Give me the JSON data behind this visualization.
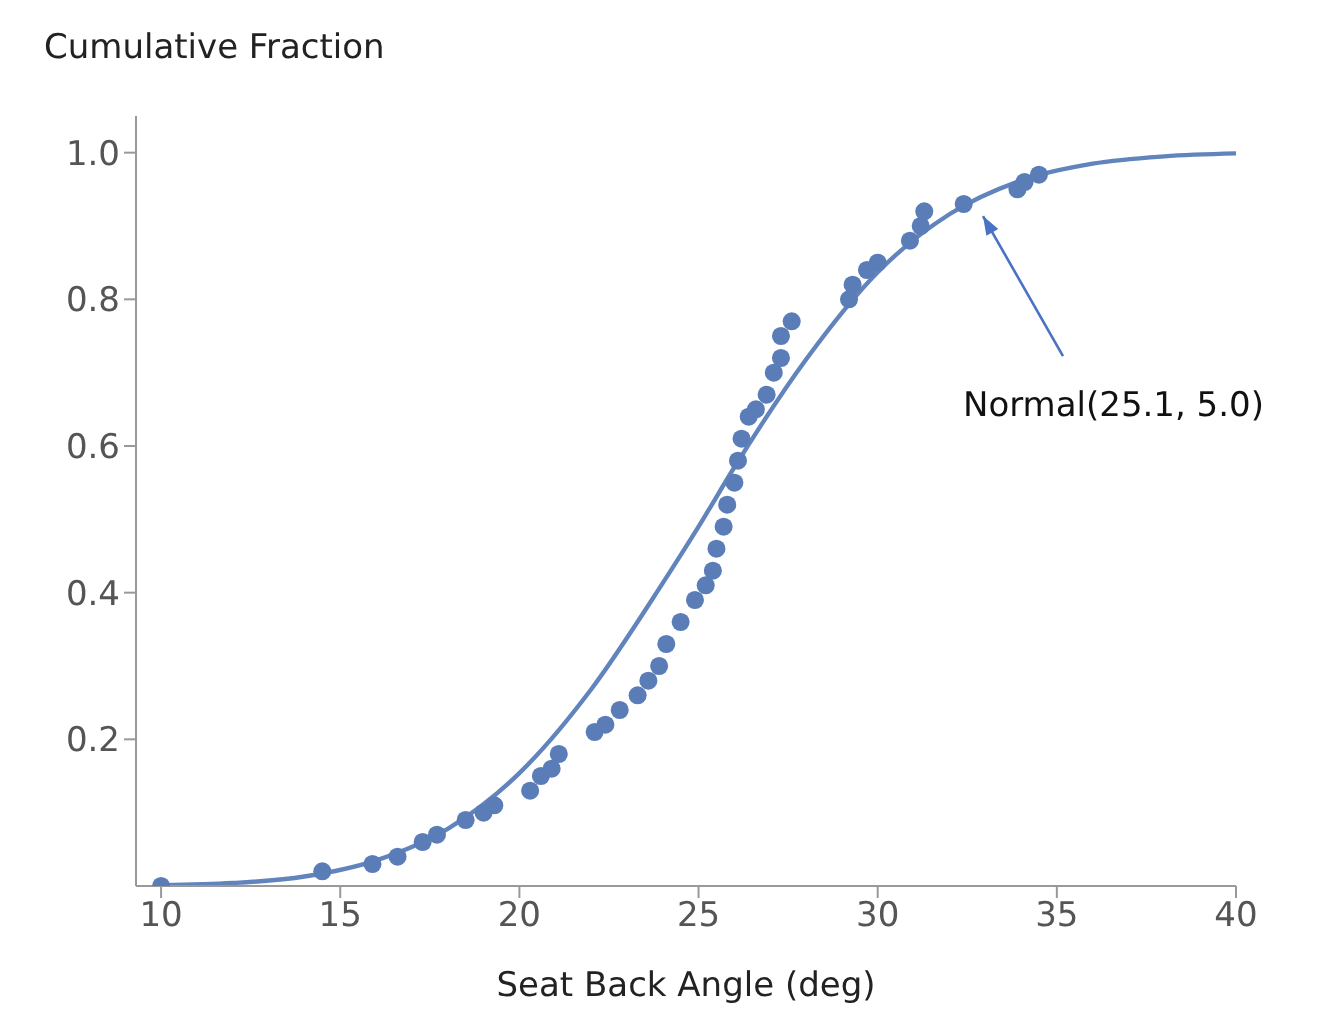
{
  "chart_data": {
    "type": "scatter",
    "xlabel": "Seat Back Angle (deg)",
    "ylabel": "Cumulative Fraction",
    "xlim": [
      9.3,
      40
    ],
    "xticks": [
      10,
      15,
      20,
      25,
      30,
      35,
      40
    ],
    "ylim": [
      0,
      1.05
    ],
    "yticks": [
      0.2,
      0.4,
      0.6,
      0.8,
      {
        "value": 1.0,
        "label": "1.0"
      }
    ],
    "grid": false,
    "marker": "circle",
    "annotations": [
      "Normal(25.1, 5.0)"
    ],
    "series": [
      {
        "color": "#5a7db8",
        "x": [
          10.0,
          14.5,
          15.9,
          16.6,
          17.3,
          17.7,
          18.5,
          19.0,
          19.3,
          20.3,
          20.6,
          20.9,
          21.1,
          22.1,
          22.4,
          22.8,
          23.3,
          23.6,
          23.9,
          24.1,
          24.5,
          24.9,
          25.2,
          25.4,
          25.5,
          25.7,
          25.8,
          26.0,
          26.1,
          26.2,
          26.4,
          26.6,
          26.9,
          27.1,
          27.3,
          27.3,
          27.6,
          29.2,
          29.3,
          29.7,
          30.0,
          30.9,
          31.2,
          31.3,
          32.4,
          33.9,
          34.1,
          34.5
        ],
        "values": [
          0.0,
          0.02,
          0.03,
          0.04,
          0.06,
          0.07,
          0.09,
          0.1,
          0.11,
          0.13,
          0.15,
          0.16,
          0.18,
          0.21,
          0.22,
          0.24,
          0.26,
          0.28,
          0.3,
          0.33,
          0.36,
          0.39,
          0.41,
          0.43,
          0.46,
          0.49,
          0.52,
          0.55,
          0.58,
          0.61,
          0.64,
          0.65,
          0.67,
          0.7,
          0.72,
          0.75,
          0.77,
          0.8,
          0.82,
          0.84,
          0.85,
          0.88,
          0.9,
          0.92,
          0.93,
          0.95,
          0.96,
          0.97
        ]
      },
      {
        "type": "line",
        "color": "#6184bd",
        "marker": "none",
        "x": [
          10,
          12,
          14,
          16,
          18,
          20,
          22,
          24,
          25,
          26,
          28,
          30,
          32,
          34,
          36,
          38,
          40
        ],
        "values": [
          0.001,
          0.004,
          0.013,
          0.035,
          0.078,
          0.154,
          0.268,
          0.413,
          0.49,
          0.571,
          0.718,
          0.837,
          0.916,
          0.962,
          0.985,
          0.995,
          0.999
        ]
      }
    ]
  }
}
